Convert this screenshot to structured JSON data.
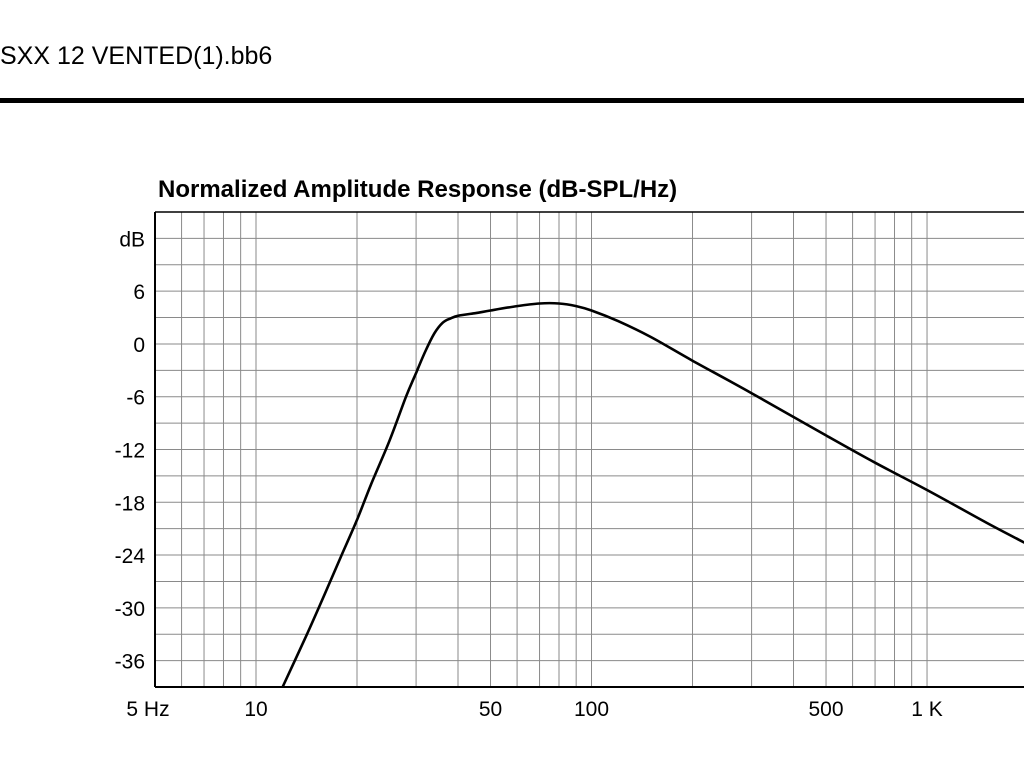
{
  "document": {
    "filename": "SXX 12 VENTED(1).bb6"
  },
  "chart_data": {
    "type": "line",
    "title": "Normalized Amplitude Response (dB-SPL/Hz)",
    "xlabel": "",
    "ylabel": "dB",
    "x_scale": "log",
    "xlim": [
      5,
      2000
    ],
    "ylim": [
      -39,
      15
    ],
    "x_tick_labels": [
      {
        "value": 5,
        "label": "5 Hz"
      },
      {
        "value": 10,
        "label": "10"
      },
      {
        "value": 50,
        "label": "50"
      },
      {
        "value": 100,
        "label": "100"
      },
      {
        "value": 500,
        "label": "500"
      },
      {
        "value": 1000,
        "label": "1 K"
      }
    ],
    "y_tick_labels": [
      {
        "value": 12,
        "label": "dB"
      },
      {
        "value": 6,
        "label": "6"
      },
      {
        "value": 0,
        "label": "0"
      },
      {
        "value": -6,
        "label": "-6"
      },
      {
        "value": -12,
        "label": "-12"
      },
      {
        "value": -18,
        "label": "-18"
      },
      {
        "value": -24,
        "label": "-24"
      },
      {
        "value": -30,
        "label": "-30"
      },
      {
        "value": -36,
        "label": "-36"
      }
    ],
    "grid": true,
    "legend": "none",
    "line_color": "#000000",
    "series": [
      {
        "x": [
          12,
          14,
          16,
          18,
          20,
          22,
          25,
          28,
          30,
          32,
          34,
          36,
          38,
          40,
          45,
          50,
          60,
          70,
          80,
          90,
          100,
          120,
          150,
          200,
          300,
          500,
          700,
          1000,
          1500,
          2000
        ],
        "y": [
          -39,
          -33.5,
          -28.5,
          -24,
          -20,
          -16,
          -11,
          -6,
          -3.3,
          -0.8,
          1.2,
          2.4,
          2.9,
          3.2,
          3.5,
          3.8,
          4.3,
          4.6,
          4.6,
          4.3,
          3.8,
          2.6,
          0.8,
          -1.9,
          -5.6,
          -10.4,
          -13.5,
          -16.6,
          -20.3,
          -22.8
        ]
      }
    ]
  }
}
